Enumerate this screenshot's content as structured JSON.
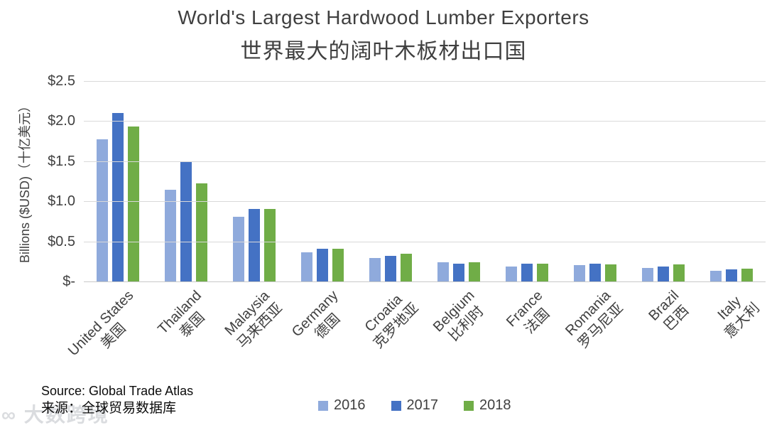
{
  "title": {
    "en": "World's Largest Hardwood Lumber Exporters",
    "zh": "世界最大的阔叶木板材出口国"
  },
  "axes": {
    "y_title": "Billions ($USD)（十亿美元）",
    "ticks": [
      {
        "label": "$2.5",
        "value": 2.5
      },
      {
        "label": "$2.0",
        "value": 2.0
      },
      {
        "label": "$1.5",
        "value": 1.5
      },
      {
        "label": "$1.0",
        "value": 1.0
      },
      {
        "label": "$0.5",
        "value": 0.5
      },
      {
        "label": "$-",
        "value": 0
      }
    ]
  },
  "source": {
    "en": "Source: Global Trade Atlas",
    "zh": "来源：全球贸易数据库"
  },
  "watermark": {
    "text": "∞ 大数跨境"
  },
  "chart_data": {
    "type": "bar",
    "title": "World's Largest Hardwood Lumber Exporters 世界最大的阔叶木板材出口国",
    "xlabel": "",
    "ylabel": "Billions ($USD)（十亿美元）",
    "ylim": [
      0,
      2.5
    ],
    "grid": true,
    "legend_position": "bottom",
    "categories": [
      {
        "en": "United States",
        "zh": "美国"
      },
      {
        "en": "Thailand",
        "zh": "泰国"
      },
      {
        "en": "Malaysia",
        "zh": "马来西亚"
      },
      {
        "en": "Germany",
        "zh": "德国"
      },
      {
        "en": "Croatia",
        "zh": "克罗地亚"
      },
      {
        "en": "Belgium",
        "zh": "比利时"
      },
      {
        "en": "France",
        "zh": "法国"
      },
      {
        "en": "Romania",
        "zh": "罗马尼亚"
      },
      {
        "en": "Brazil",
        "zh": "巴西"
      },
      {
        "en": "Italy",
        "zh": "意大利"
      }
    ],
    "series": [
      {
        "name": "2016",
        "color": "#8FAADC",
        "values": [
          1.77,
          1.14,
          0.81,
          0.36,
          0.29,
          0.24,
          0.19,
          0.2,
          0.17,
          0.13
        ]
      },
      {
        "name": "2017",
        "color": "#4472C4",
        "values": [
          2.1,
          1.5,
          0.9,
          0.41,
          0.32,
          0.22,
          0.22,
          0.22,
          0.19,
          0.15
        ]
      },
      {
        "name": "2018",
        "color": "#70AD47",
        "values": [
          1.93,
          1.22,
          0.9,
          0.41,
          0.35,
          0.24,
          0.22,
          0.21,
          0.21,
          0.16
        ]
      }
    ]
  }
}
